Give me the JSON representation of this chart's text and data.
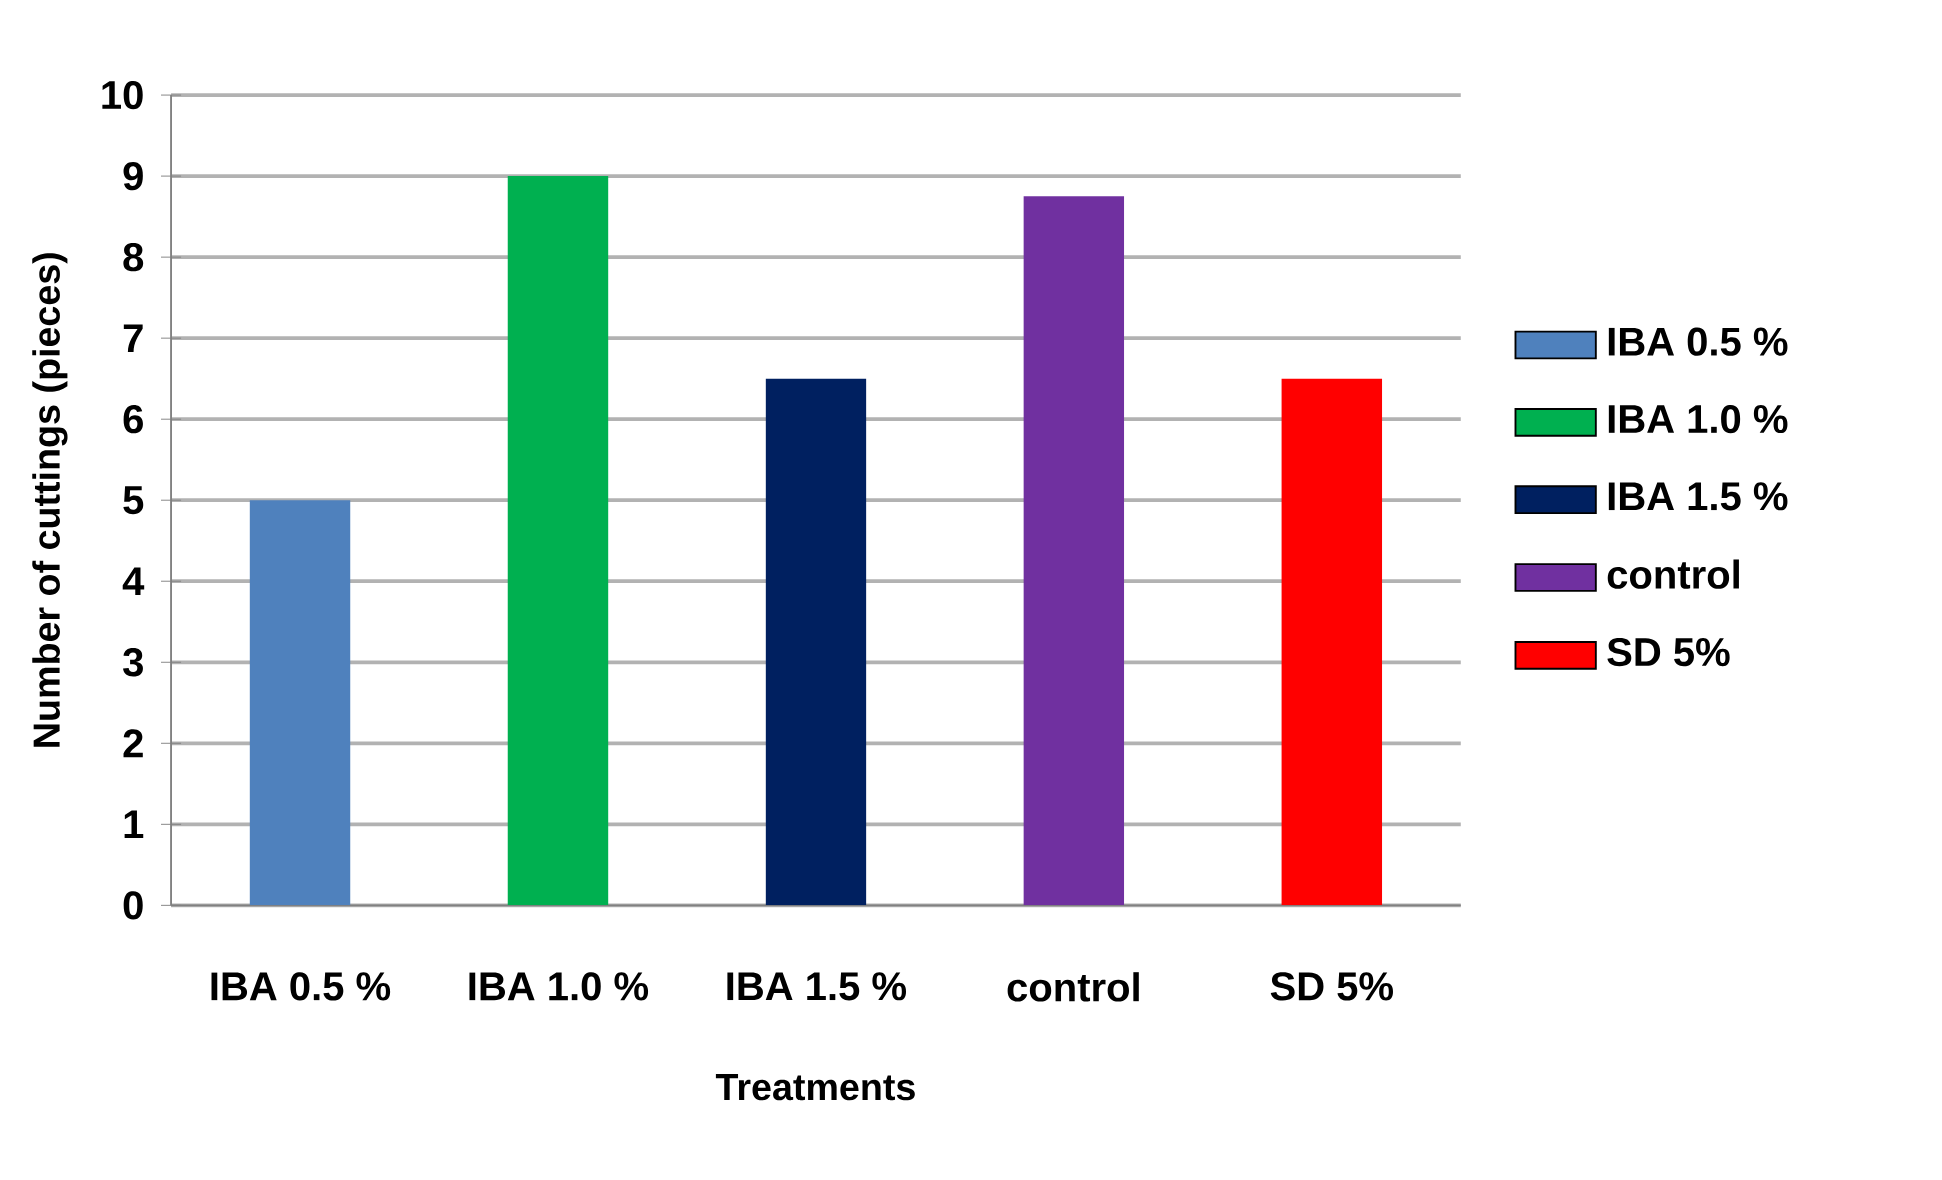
{
  "chart_data": {
    "type": "bar",
    "xlabel": "Treatments",
    "ylabel": "Number of cuttings (pieces)",
    "categories": [
      "IBA 0.5 %",
      "IBA 1.0 %",
      "IBA 1.5 %",
      "control",
      "SD 5%"
    ],
    "series": [
      {
        "name": "IBA 0.5 %",
        "color": "#4f81bd",
        "values": [
          5,
          null,
          null,
          null,
          null
        ]
      },
      {
        "name": "IBA 1.0 %",
        "color": "#00b050",
        "values": [
          null,
          9,
          null,
          null,
          null
        ]
      },
      {
        "name": "IBA 1.5 %",
        "color": "#002060",
        "values": [
          null,
          null,
          6.5,
          null,
          null
        ]
      },
      {
        "name": "control",
        "color": "#7030a0",
        "values": [
          null,
          null,
          null,
          8.75,
          null
        ]
      },
      {
        "name": "SD 5%",
        "color": "#ff0000",
        "values": [
          null,
          null,
          null,
          null,
          6.5
        ]
      }
    ],
    "ylim": [
      0,
      10
    ],
    "yticks": [
      0,
      1,
      2,
      3,
      4,
      5,
      6,
      7,
      8,
      9,
      10
    ],
    "grid": "y",
    "legend": "right"
  }
}
